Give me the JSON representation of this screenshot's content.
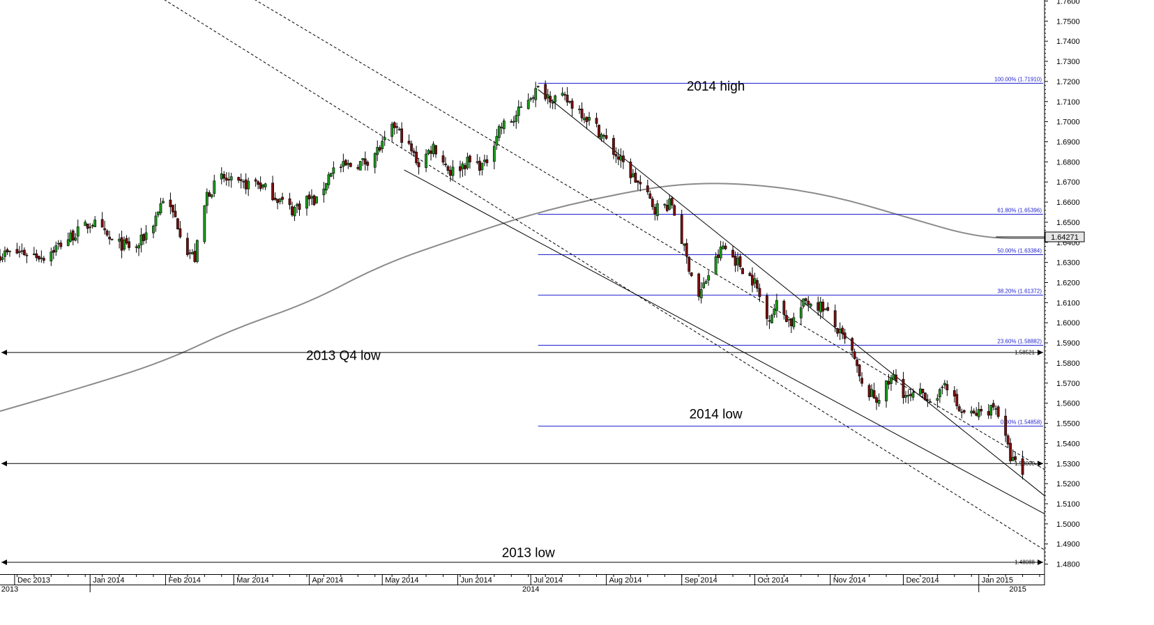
{
  "chart_data": {
    "type": "candlestick",
    "y_axis": {
      "position": "right",
      "min": 1.475,
      "max": 1.7605,
      "ticks": [
        "1.4800",
        "1.4900",
        "1.5000",
        "1.5100",
        "1.5200",
        "1.5300",
        "1.5400",
        "1.5500",
        "1.5600",
        "1.5700",
        "1.5800",
        "1.5900",
        "1.6000",
        "1.6100",
        "1.6200",
        "1.6300",
        "1.6400",
        "1.6500",
        "1.6600",
        "1.6700",
        "1.6800",
        "1.6900",
        "1.7000",
        "1.7100",
        "1.7200",
        "1.7300",
        "1.7400",
        "1.7500",
        "1.7600"
      ]
    },
    "x_axis": {
      "start": "2013-11-25",
      "end": "2015-01-28",
      "month_labels": [
        {
          "label": "Dec 2013",
          "date": "2013-12-01"
        },
        {
          "label": "Jan 2014",
          "date": "2014-01-01"
        },
        {
          "label": "Feb 2014",
          "date": "2014-02-01"
        },
        {
          "label": "Mar 2014",
          "date": "2014-03-01"
        },
        {
          "label": "Apr 2014",
          "date": "2014-04-01"
        },
        {
          "label": "May 2014",
          "date": "2014-05-01"
        },
        {
          "label": "Jun 2014",
          "date": "2014-06-01"
        },
        {
          "label": "Jul 2014",
          "date": "2014-07-01"
        },
        {
          "label": "Aug 2014",
          "date": "2014-08-01"
        },
        {
          "label": "Sep 2014",
          "date": "2014-09-01"
        },
        {
          "label": "Oct 2014",
          "date": "2014-10-01"
        },
        {
          "label": "Nov 2014",
          "date": "2014-11-01"
        },
        {
          "label": "Dec 2014",
          "date": "2014-12-01"
        },
        {
          "label": "Jan 2015",
          "date": "2015-01-01"
        }
      ],
      "year_labels": [
        {
          "label": "2013",
          "date": "2013-11-29"
        },
        {
          "label": "2014",
          "date": "2014-07-01"
        },
        {
          "label": "2015",
          "date": "2015-01-17"
        }
      ]
    },
    "price_path": [
      {
        "date": "2013-11-25",
        "close": 1.634
      },
      {
        "date": "2013-12-04",
        "close": 1.635
      },
      {
        "date": "2013-12-13",
        "close": 1.633
      },
      {
        "date": "2013-12-23",
        "close": 1.642
      },
      {
        "date": "2014-01-02",
        "close": 1.65
      },
      {
        "date": "2014-01-10",
        "close": 1.64
      },
      {
        "date": "2014-01-20",
        "close": 1.637
      },
      {
        "date": "2014-01-27",
        "close": 1.65
      },
      {
        "date": "2014-01-31",
        "close": 1.662
      },
      {
        "date": "2014-02-05",
        "close": 1.652
      },
      {
        "date": "2014-02-10",
        "close": 1.636
      },
      {
        "date": "2014-02-13",
        "close": 1.632
      },
      {
        "date": "2014-02-18",
        "close": 1.664
      },
      {
        "date": "2014-02-24",
        "close": 1.672
      },
      {
        "date": "2014-03-03",
        "close": 1.668
      },
      {
        "date": "2014-03-10",
        "close": 1.67
      },
      {
        "date": "2014-03-17",
        "close": 1.664
      },
      {
        "date": "2014-03-25",
        "close": 1.656
      },
      {
        "date": "2014-03-31",
        "close": 1.662
      },
      {
        "date": "2014-04-04",
        "close": 1.66
      },
      {
        "date": "2014-04-10",
        "close": 1.676
      },
      {
        "date": "2014-04-17",
        "close": 1.678
      },
      {
        "date": "2014-04-24",
        "close": 1.68
      },
      {
        "date": "2014-05-01",
        "close": 1.688
      },
      {
        "date": "2014-05-06",
        "close": 1.698
      },
      {
        "date": "2014-05-12",
        "close": 1.687
      },
      {
        "date": "2014-05-16",
        "close": 1.679
      },
      {
        "date": "2014-05-22",
        "close": 1.688
      },
      {
        "date": "2014-05-29",
        "close": 1.675
      },
      {
        "date": "2014-06-05",
        "close": 1.68
      },
      {
        "date": "2014-06-12",
        "close": 1.678
      },
      {
        "date": "2014-06-18",
        "close": 1.697
      },
      {
        "date": "2014-06-24",
        "close": 1.701
      },
      {
        "date": "2014-06-30",
        "close": 1.712
      },
      {
        "date": "2014-07-04",
        "close": 1.716
      },
      {
        "date": "2014-07-10",
        "close": 1.712
      },
      {
        "date": "2014-07-15",
        "close": 1.711
      },
      {
        "date": "2014-07-21",
        "close": 1.706
      },
      {
        "date": "2014-07-28",
        "close": 1.697
      },
      {
        "date": "2014-08-04",
        "close": 1.685
      },
      {
        "date": "2014-08-11",
        "close": 1.674
      },
      {
        "date": "2014-08-15",
        "close": 1.668
      },
      {
        "date": "2014-08-21",
        "close": 1.657
      },
      {
        "date": "2014-08-28",
        "close": 1.659
      },
      {
        "date": "2014-09-03",
        "close": 1.632
      },
      {
        "date": "2014-09-08",
        "close": 1.613
      },
      {
        "date": "2014-09-12",
        "close": 1.624
      },
      {
        "date": "2014-09-18",
        "close": 1.638
      },
      {
        "date": "2014-09-24",
        "close": 1.63
      },
      {
        "date": "2014-10-01",
        "close": 1.62
      },
      {
        "date": "2014-10-06",
        "close": 1.602
      },
      {
        "date": "2014-10-10",
        "close": 1.609
      },
      {
        "date": "2014-10-16",
        "close": 1.6
      },
      {
        "date": "2014-10-22",
        "close": 1.611
      },
      {
        "date": "2014-10-29",
        "close": 1.608
      },
      {
        "date": "2014-11-03",
        "close": 1.598
      },
      {
        "date": "2014-11-10",
        "close": 1.585
      },
      {
        "date": "2014-11-14",
        "close": 1.568
      },
      {
        "date": "2014-11-20",
        "close": 1.562
      },
      {
        "date": "2014-11-27",
        "close": 1.573
      },
      {
        "date": "2014-12-03",
        "close": 1.562
      },
      {
        "date": "2014-12-09",
        "close": 1.565
      },
      {
        "date": "2014-12-15",
        "close": 1.56
      },
      {
        "date": "2014-12-18",
        "close": 1.572
      },
      {
        "date": "2014-12-24",
        "close": 1.556
      },
      {
        "date": "2014-12-30",
        "close": 1.554
      },
      {
        "date": "2015-01-05",
        "close": 1.557
      },
      {
        "date": "2015-01-08",
        "close": 1.559
      },
      {
        "date": "2015-01-14",
        "close": 1.533
      },
      {
        "date": "2015-01-19",
        "close": 1.525
      }
    ],
    "moving_average": [
      {
        "date": "2013-11-25",
        "value": 1.556
      },
      {
        "date": "2014-01-01",
        "value": 1.569
      },
      {
        "date": "2014-02-01",
        "value": 1.581
      },
      {
        "date": "2014-03-01",
        "value": 1.597
      },
      {
        "date": "2014-04-01",
        "value": 1.61
      },
      {
        "date": "2014-05-01",
        "value": 1.629
      },
      {
        "date": "2014-06-01",
        "value": 1.642
      },
      {
        "date": "2014-07-01",
        "value": 1.654
      },
      {
        "date": "2014-08-01",
        "value": 1.663
      },
      {
        "date": "2014-09-01",
        "value": 1.6695
      },
      {
        "date": "2014-10-01",
        "value": 1.669
      },
      {
        "date": "2014-11-01",
        "value": 1.6635
      },
      {
        "date": "2014-12-01",
        "value": 1.653
      },
      {
        "date": "2015-01-01",
        "value": 1.642
      },
      {
        "date": "2015-01-28",
        "value": 1.642
      }
    ],
    "horizontal_lines": [
      {
        "value": 1.58521,
        "label": "1.58521"
      },
      {
        "value": 1.53,
        "label": "1.53000"
      },
      {
        "value": 1.48088,
        "label": "1.48088"
      }
    ],
    "fibonacci": {
      "start_date": "2014-07-04",
      "end_date": "2015-01-28",
      "levels": [
        {
          "value": 1.7191,
          "label": "100.00% (1.71910)"
        },
        {
          "value": 1.65396,
          "label": "61.80% (1.65396)"
        },
        {
          "value": 1.63384,
          "label": "50.00% (1.63384)"
        },
        {
          "value": 1.61372,
          "label": "38.20% (1.61372)"
        },
        {
          "value": 1.58882,
          "label": "23.60% (1.58882)"
        },
        {
          "value": 1.54858,
          "label": "0.00% (1.54858)"
        }
      ]
    },
    "trend_lines": [
      {
        "style": "solid",
        "points": [
          {
            "date": "2014-05-10",
            "value": 1.676
          },
          {
            "date": "2015-01-28",
            "value": 1.505
          }
        ]
      },
      {
        "style": "solid",
        "points": [
          {
            "date": "2014-07-04",
            "value": 1.716
          },
          {
            "date": "2015-01-28",
            "value": 1.514
          }
        ]
      },
      {
        "style": "dashed",
        "points": [
          {
            "date": "2014-01-28",
            "value": 1.7633
          },
          {
            "date": "2015-01-28",
            "value": 1.487
          }
        ]
      },
      {
        "style": "dashed",
        "points": [
          {
            "date": "2014-03-06",
            "value": 1.7633
          },
          {
            "date": "2015-01-28",
            "value": 1.527
          }
        ]
      }
    ],
    "last_price": {
      "value": 1.6427,
      "label": "1.64271"
    },
    "annotations": [
      {
        "text": "2014 high",
        "date": "2014-09-15",
        "value": 1.7155
      },
      {
        "text": "2013 Q4 low",
        "date": "2014-04-15",
        "value": 1.5815
      },
      {
        "text": "2014 low",
        "date": "2014-09-15",
        "value": 1.5525
      },
      {
        "text": "2013 low",
        "date": "2014-06-30",
        "value": 1.4835
      }
    ]
  }
}
